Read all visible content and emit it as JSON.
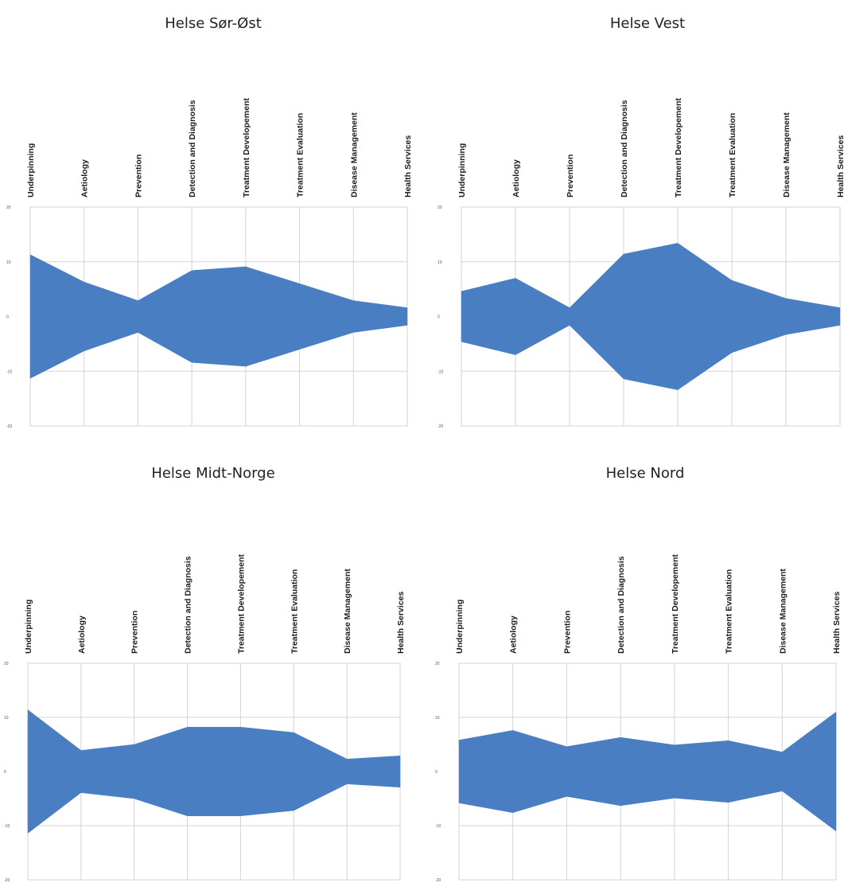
{
  "chart_data": [
    {
      "type": "area",
      "title": "Helse Sør-Øst",
      "categories": [
        "Underpinning",
        "Aetiology",
        "Prevention",
        "Detection and Diagnosis",
        "Treatment Developement",
        "Treatment Evaluation",
        "Disease Management",
        "Health Services"
      ],
      "values": [
        11.3,
        6.3,
        2.9,
        8.4,
        9.1,
        6.0,
        2.9,
        1.6
      ],
      "ylim": [
        -20,
        20
      ],
      "yticks": [
        "20",
        "10",
        "0",
        "-10",
        "-20"
      ],
      "symmetric": true,
      "color": "#4a7ec2",
      "grid": true
    },
    {
      "type": "area",
      "title": "Helse Vest",
      "categories": [
        "Underpinning",
        "Aetiology",
        "Prevention",
        "Detection and Diagnosis",
        "Treatment Developement",
        "Treatment Evaluation",
        "Disease Management",
        "Health Services"
      ],
      "values": [
        4.6,
        7.0,
        1.6,
        11.4,
        13.4,
        6.6,
        3.3,
        1.6
      ],
      "ylim": [
        -20,
        20
      ],
      "yticks": [
        "20",
        "10",
        "0",
        "-10",
        "-20"
      ],
      "symmetric": true,
      "color": "#4a7ec2",
      "grid": true
    },
    {
      "type": "area",
      "title": "Helse Midt-Norge",
      "categories": [
        "Underpinning",
        "Aetiology",
        "Prevention",
        "Detection and Diagnosis",
        "Treatment Developement",
        "Treatment Evaluation",
        "Disease Management",
        "Health Services"
      ],
      "values": [
        11.4,
        3.9,
        5.0,
        8.2,
        8.2,
        7.2,
        2.3,
        2.9
      ],
      "ylim": [
        -20,
        20
      ],
      "yticks": [
        "20",
        "10",
        "0",
        "-10",
        "-20"
      ],
      "symmetric": true,
      "color": "#4a7ec2",
      "grid": true
    },
    {
      "type": "area",
      "title": "Helse Nord",
      "categories": [
        "Underpinning",
        "Aetiology",
        "Prevention",
        "Detection and Diagnosis",
        "Treatment Developement",
        "Treatment Evaluation",
        "Disease Management",
        "Health Services"
      ],
      "values": [
        5.8,
        7.6,
        4.6,
        6.3,
        4.9,
        5.7,
        3.6,
        11.0
      ],
      "ylim": [
        -20,
        20
      ],
      "yticks": [
        "20",
        "10",
        "0",
        "-10",
        "-20"
      ],
      "symmetric": true,
      "color": "#4a7ec2",
      "grid": true
    }
  ]
}
